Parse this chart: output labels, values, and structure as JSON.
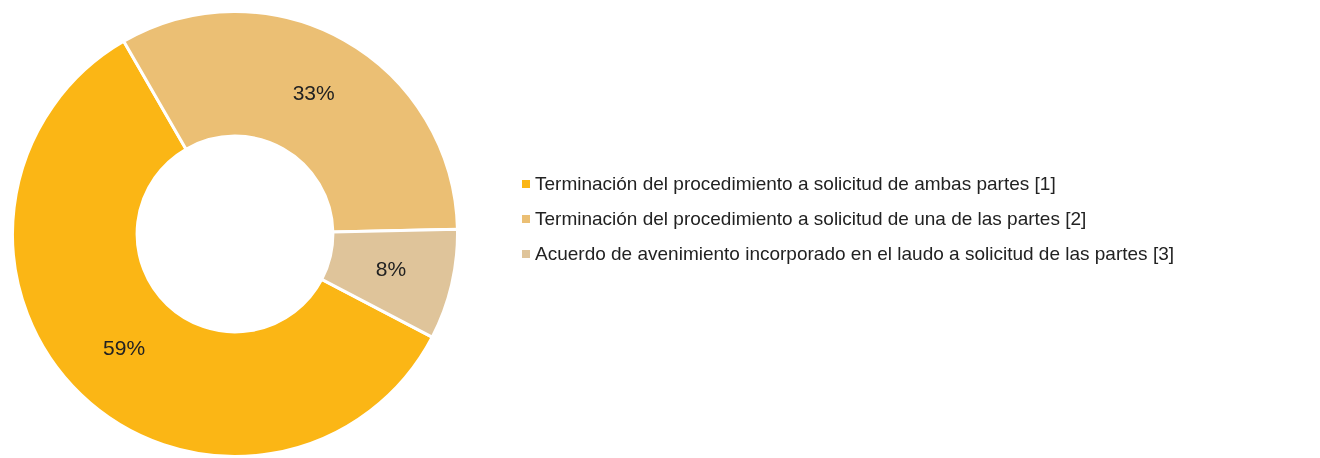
{
  "chart_data": {
    "type": "donut",
    "categories": [
      "Terminación del procedimiento a solicitud de ambas partes [1]",
      "Terminación del procedimiento a solicitud de una de las partes [2]",
      "Acuerdo de avenimiento incorporado en el laudo a solicitud de las partes [3]"
    ],
    "values": [
      59,
      33,
      8
    ],
    "colors": [
      "#fbb615",
      "#ebbf74",
      "#dfc49a"
    ],
    "value_labels": [
      "59%",
      "33%",
      "8%"
    ],
    "legend": "right"
  }
}
